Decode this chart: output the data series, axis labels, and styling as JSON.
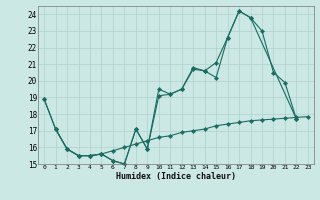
{
  "title": "",
  "xlabel": "Humidex (Indice chaleur)",
  "xlim": [
    -0.5,
    23.5
  ],
  "ylim": [
    15,
    24.5
  ],
  "yticks": [
    15,
    16,
    17,
    18,
    19,
    20,
    21,
    22,
    23,
    24
  ],
  "xticks": [
    0,
    1,
    2,
    3,
    4,
    5,
    6,
    7,
    8,
    9,
    10,
    11,
    12,
    13,
    14,
    15,
    16,
    17,
    18,
    19,
    20,
    21,
    22,
    23
  ],
  "background_color": "#cce8e4",
  "grid_color": "#b0d0cc",
  "line_color": "#1a6b60",
  "line1_x": [
    0,
    1,
    2,
    3,
    4,
    5,
    6,
    7,
    8,
    9,
    10,
    11,
    12,
    13,
    14,
    15,
    16,
    17,
    18,
    19,
    20,
    21,
    22
  ],
  "line1_y": [
    18.9,
    17.1,
    15.9,
    15.5,
    15.5,
    15.6,
    15.2,
    15.0,
    17.1,
    15.9,
    19.1,
    19.2,
    19.5,
    20.7,
    20.6,
    20.2,
    22.6,
    24.2,
    23.8,
    23.0,
    20.5,
    19.9,
    17.7
  ],
  "line2_x": [
    0,
    1,
    2,
    3,
    4,
    5,
    6,
    7,
    8,
    9,
    10,
    11,
    12,
    13,
    14,
    15,
    16,
    17,
    18,
    22
  ],
  "line2_y": [
    18.9,
    17.1,
    15.9,
    15.5,
    15.5,
    15.6,
    15.2,
    15.0,
    17.1,
    15.9,
    19.5,
    19.2,
    19.5,
    20.8,
    20.6,
    21.1,
    22.6,
    24.2,
    23.8,
    17.7
  ],
  "line3_x": [
    1,
    2,
    3,
    4,
    5,
    6,
    7,
    8,
    9,
    10,
    11,
    12,
    13,
    14,
    15,
    16,
    17,
    18,
    19,
    20,
    21,
    22,
    23
  ],
  "line3_y": [
    17.1,
    15.9,
    15.5,
    15.5,
    15.6,
    15.8,
    16.0,
    16.2,
    16.4,
    16.6,
    16.7,
    16.9,
    17.0,
    17.1,
    17.3,
    17.4,
    17.5,
    17.6,
    17.65,
    17.7,
    17.75,
    17.8,
    17.85
  ]
}
